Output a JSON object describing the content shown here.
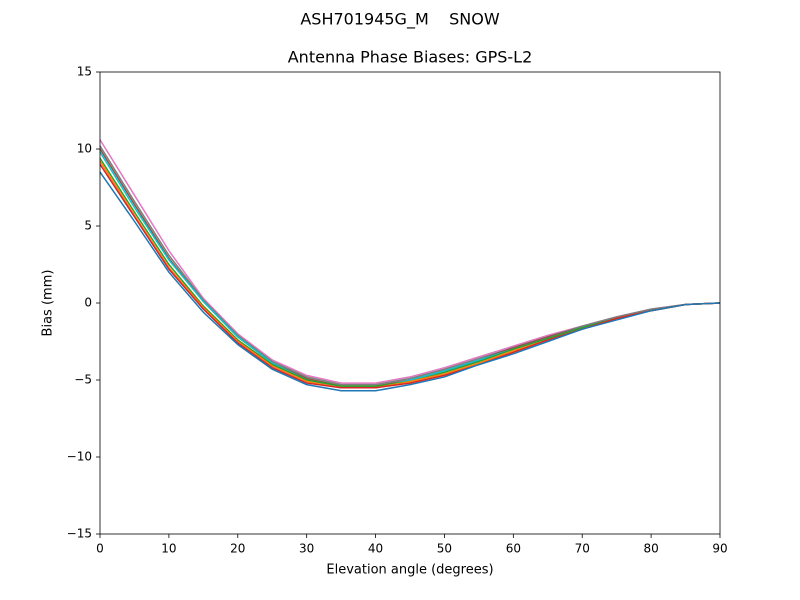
{
  "chart_data": {
    "type": "line",
    "suptitle": "ASH701945G_M    SNOW",
    "title": "Antenna Phase Biases: GPS-L2",
    "xlabel": "Elevation angle (degrees)",
    "ylabel": "Bias (mm)",
    "x": [
      0,
      5,
      10,
      15,
      20,
      25,
      30,
      35,
      40,
      45,
      50,
      55,
      60,
      65,
      70,
      75,
      80,
      85,
      90
    ],
    "series": [
      {
        "color": "#e377c2",
        "values": [
          10.6,
          7.0,
          3.4,
          0.3,
          -2.0,
          -3.7,
          -4.7,
          -5.2,
          -5.2,
          -4.8,
          -4.2,
          -3.5,
          -2.8,
          -2.1,
          -1.5,
          -0.9,
          -0.4,
          -0.1,
          0
        ]
      },
      {
        "color": "#7f7f7f",
        "values": [
          10.2,
          6.6,
          3.1,
          0.2,
          -2.1,
          -3.8,
          -4.8,
          -5.3,
          -5.3,
          -4.9,
          -4.3,
          -3.6,
          -2.9,
          -2.2,
          -1.5,
          -0.9,
          -0.4,
          -0.1,
          0
        ]
      },
      {
        "color": "#8c564b",
        "values": [
          10.0,
          6.4,
          2.9,
          0.1,
          -2.2,
          -3.9,
          -4.9,
          -5.4,
          -5.4,
          -5.0,
          -4.4,
          -3.7,
          -2.9,
          -2.2,
          -1.6,
          -1.0,
          -0.5,
          -0.1,
          0
        ]
      },
      {
        "color": "#17becf",
        "values": [
          9.8,
          6.2,
          2.8,
          0.1,
          -2.2,
          -3.9,
          -5.0,
          -5.5,
          -5.5,
          -5.0,
          -4.4,
          -3.7,
          -3.0,
          -2.3,
          -1.6,
          -1.0,
          -0.5,
          -0.1,
          0
        ]
      },
      {
        "color": "#2ca02c",
        "values": [
          9.4,
          5.9,
          2.5,
          -0.2,
          -2.4,
          -4.0,
          -5.0,
          -5.4,
          -5.4,
          -5.1,
          -4.5,
          -3.8,
          -3.0,
          -2.3,
          -1.6,
          -1.0,
          -0.5,
          -0.1,
          0
        ]
      },
      {
        "color": "#ff7f0e",
        "values": [
          9.2,
          5.7,
          2.3,
          -0.3,
          -2.5,
          -4.1,
          -5.1,
          -5.5,
          -5.5,
          -5.1,
          -4.6,
          -3.9,
          -3.1,
          -2.4,
          -1.7,
          -1.0,
          -0.5,
          -0.1,
          0
        ]
      },
      {
        "color": "#d62728",
        "values": [
          9.0,
          5.6,
          2.2,
          -0.4,
          -2.6,
          -4.2,
          -5.2,
          -5.5,
          -5.5,
          -5.2,
          -4.7,
          -4.0,
          -3.2,
          -2.4,
          -1.7,
          -1.0,
          -0.5,
          -0.1,
          0
        ]
      },
      {
        "color": "#1f77b4",
        "values": [
          8.5,
          5.3,
          2.0,
          -0.6,
          -2.7,
          -4.3,
          -5.3,
          -5.7,
          -5.7,
          -5.3,
          -4.8,
          -4.0,
          -3.3,
          -2.5,
          -1.7,
          -1.1,
          -0.5,
          -0.1,
          0
        ]
      }
    ],
    "xlim": [
      0,
      90
    ],
    "xticks": [
      0,
      10,
      20,
      30,
      40,
      50,
      60,
      70,
      80,
      90
    ],
    "ylim": [
      -15,
      15
    ],
    "yticks": [
      {
        "value": -15,
        "label": "−15"
      },
      {
        "value": -10,
        "label": "−10"
      },
      {
        "value": -5,
        "label": "−5"
      },
      0,
      5,
      10,
      15
    ],
    "grid": false
  }
}
